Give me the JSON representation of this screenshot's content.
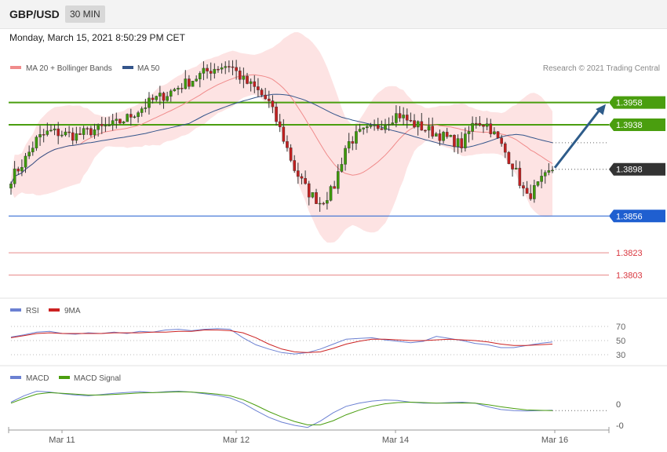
{
  "header": {
    "symbol": "GBP/USD",
    "timeframe": "30 MIN"
  },
  "datetime": "Monday, March 15, 2021 8:50:29 PM CET",
  "copyright": "Research © 2021 Trading Central",
  "colors": {
    "support_blue": "#1f5fd0",
    "resistance_green": "#4a9e0f",
    "red_level": "#d9363e",
    "bb_fill": "#fde3e3",
    "ma20": "#f08b8b",
    "ma50": "#34558b",
    "rsi": "#6b80d2",
    "rsi_ma": "#cc2222",
    "macd": "#6b80d2",
    "macd_signal": "#4a9e0f",
    "current_price": "#333333",
    "arrow": "#2e5c8a",
    "candle_up": "#3e9a0a",
    "candle_down": "#c21f1f"
  },
  "chart_data": [
    {
      "type": "candlestick",
      "symbol": "GBP/USD",
      "interval": "30 MIN",
      "legend": [
        "MA 20 + Bollinger Bands",
        "MA 50"
      ],
      "x_ticks": [
        "Mar 11",
        "Mar 12",
        "Mar 14",
        "Mar 16"
      ],
      "ylim": [
        1.3785,
        1.4005
      ],
      "current_price": 1.3898,
      "levels": [
        {
          "value": 1.3958,
          "label": "1.3958",
          "kind": "resistance"
        },
        {
          "value": 1.3938,
          "label": "1.3938",
          "kind": "resistance"
        },
        {
          "value": 1.3898,
          "label": "1.3898",
          "kind": "current"
        },
        {
          "value": 1.3856,
          "label": "1.3856",
          "kind": "support"
        },
        {
          "value": 1.3823,
          "label": "1.3823",
          "kind": "support-2"
        },
        {
          "value": 1.3803,
          "label": "1.3803",
          "kind": "support-3"
        }
      ],
      "arrow_target": 1.3958,
      "close_path": [
        1.389,
        1.3905,
        1.3925,
        1.3932,
        1.393,
        1.3928,
        1.3932,
        1.3935,
        1.3938,
        1.3944,
        1.3952,
        1.396,
        1.3965,
        1.3972,
        1.3978,
        1.3985,
        1.399,
        1.3992,
        1.3978,
        1.397,
        1.3958,
        1.393,
        1.3898,
        1.3878,
        1.3868,
        1.388,
        1.392,
        1.393,
        1.3934,
        1.394,
        1.3948,
        1.394,
        1.3935,
        1.393,
        1.3925,
        1.392,
        1.3942,
        1.3938,
        1.392,
        1.39,
        1.3872,
        1.3885,
        1.3898
      ]
    },
    {
      "type": "line",
      "legend": [
        "RSI",
        "9MA"
      ],
      "y_ticks": [
        70,
        50,
        30
      ],
      "ylim": [
        20,
        80
      ],
      "series": [
        {
          "name": "RSI",
          "values": [
            55,
            58,
            62,
            63,
            60,
            59,
            61,
            60,
            62,
            60,
            63,
            62,
            65,
            66,
            64,
            66,
            67,
            66,
            54,
            44,
            38,
            33,
            31,
            33,
            38,
            45,
            52,
            53,
            54,
            51,
            49,
            47,
            49,
            56,
            53,
            50,
            46,
            44,
            40,
            40,
            43,
            46,
            48
          ]
        },
        {
          "name": "9MA",
          "values": [
            54,
            57,
            60,
            61,
            60,
            60,
            60,
            60,
            61,
            61,
            61,
            62,
            62,
            63,
            63,
            65,
            65,
            64,
            61,
            54,
            45,
            38,
            34,
            33,
            34,
            39,
            45,
            49,
            52,
            52,
            51,
            50,
            50,
            51,
            52,
            51,
            50,
            48,
            45,
            43,
            43,
            44,
            45
          ]
        }
      ]
    },
    {
      "type": "line",
      "legend": [
        "MACD",
        "MACD Signal"
      ],
      "y_ticks": [
        "0",
        "-0"
      ],
      "ylim": [
        -1.15,
        1.05
      ],
      "series": [
        {
          "name": "MACD",
          "values": [
            0.1,
            0.4,
            0.62,
            0.58,
            0.5,
            0.44,
            0.4,
            0.46,
            0.52,
            0.56,
            0.6,
            0.55,
            0.6,
            0.62,
            0.58,
            0.5,
            0.42,
            0.3,
            0.05,
            -0.3,
            -0.62,
            -0.85,
            -1.0,
            -1.1,
            -0.8,
            -0.4,
            -0.1,
            0.05,
            0.15,
            0.2,
            0.18,
            0.1,
            0.05,
            0.05,
            0.08,
            0.1,
            0.05,
            -0.12,
            -0.25,
            -0.3,
            -0.32,
            -0.3,
            -0.28
          ]
        },
        {
          "name": "MACD Signal",
          "values": [
            0.05,
            0.28,
            0.48,
            0.55,
            0.52,
            0.48,
            0.44,
            0.44,
            0.47,
            0.5,
            0.54,
            0.55,
            0.57,
            0.59,
            0.58,
            0.54,
            0.48,
            0.4,
            0.22,
            -0.05,
            -0.35,
            -0.6,
            -0.82,
            -0.98,
            -0.98,
            -0.78,
            -0.5,
            -0.28,
            -0.1,
            0.02,
            0.08,
            0.1,
            0.08,
            0.05,
            0.05,
            0.06,
            0.05,
            -0.02,
            -0.12,
            -0.2,
            -0.27,
            -0.29,
            -0.3
          ]
        }
      ]
    }
  ]
}
